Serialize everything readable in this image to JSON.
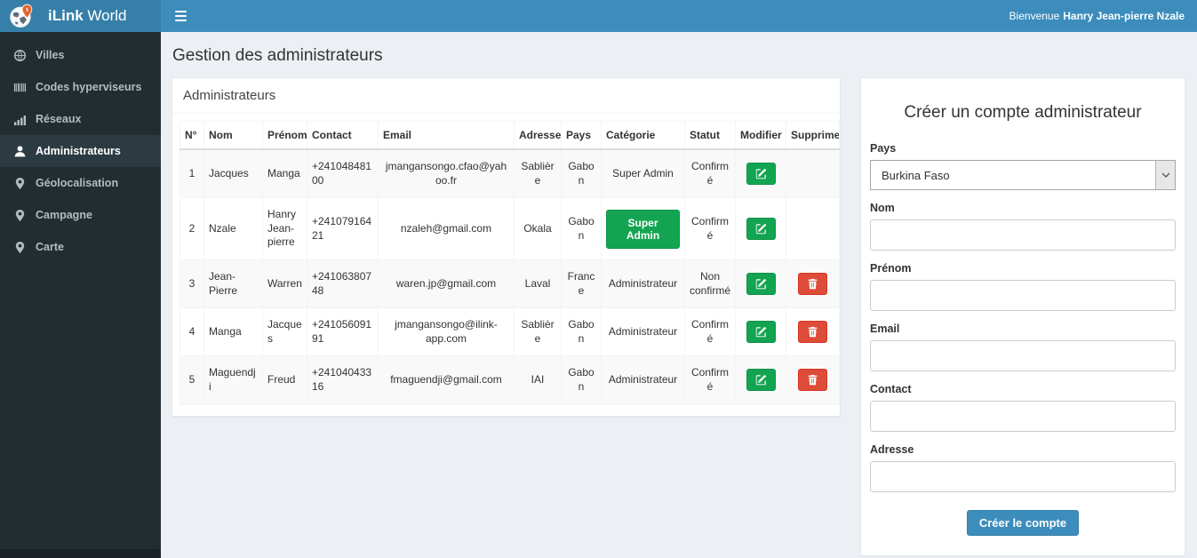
{
  "brand": {
    "bold": "iLink",
    "light": "World"
  },
  "topbar": {
    "welcome_prefix": "Bienvenue",
    "user_name": "Hanry Jean-pierre Nzale",
    "menu_icon": "hamburger-icon"
  },
  "sidebar": {
    "items": [
      {
        "label": "Villes",
        "icon": "globe-icon",
        "active": false
      },
      {
        "label": "Codes hyperviseurs",
        "icon": "barcode-icon",
        "active": false
      },
      {
        "label": "Réseaux",
        "icon": "signal-bars-icon",
        "active": false
      },
      {
        "label": "Administrateurs",
        "icon": "user-icon",
        "active": true
      },
      {
        "label": "Géolocalisation",
        "icon": "map-marker-icon",
        "active": false
      },
      {
        "label": "Campagne",
        "icon": "map-marker-icon",
        "active": false
      },
      {
        "label": "Carte",
        "icon": "map-marker-icon",
        "active": false
      }
    ]
  },
  "page": {
    "title": "Gestion des administrateurs"
  },
  "table_panel": {
    "title": "Administrateurs",
    "columns": [
      "N°",
      "Nom",
      "Prénom",
      "Contact",
      "Email",
      "Adresse",
      "Pays",
      "Catégorie",
      "Statut",
      "Modifier",
      "Supprimer"
    ],
    "rows": [
      {
        "num": "1",
        "nom": "Jacques",
        "prenom": "Manga",
        "contact": "+24104848100",
        "email": "jmangansongo.cfao@yahoo.fr",
        "adresse": "Sablière",
        "pays": "Gabon",
        "categorie": "Super Admin",
        "categorie_style": "text",
        "statut": "Confirmé",
        "can_delete": false
      },
      {
        "num": "2",
        "nom": "Nzale",
        "prenom": "Hanry Jean-pierre",
        "contact": "+24107916421",
        "email": "nzaleh@gmail.com",
        "adresse": "Okala",
        "pays": "Gabon",
        "categorie": "Super Admin",
        "categorie_style": "button",
        "statut": "Confirmé",
        "can_delete": false
      },
      {
        "num": "3",
        "nom": "Jean-Pierre",
        "prenom": "Warren",
        "contact": "+24106380748",
        "email": "waren.jp@gmail.com",
        "adresse": "Laval",
        "pays": "France",
        "categorie": "Administrateur",
        "categorie_style": "text",
        "statut": "Non confirmé",
        "can_delete": true
      },
      {
        "num": "4",
        "nom": "Manga",
        "prenom": "Jacques",
        "contact": "+24105609191",
        "email": "jmangansongo@ilink-app.com",
        "adresse": "Sablière",
        "pays": "Gabon",
        "categorie": "Administrateur",
        "categorie_style": "text",
        "statut": "Confirmé",
        "can_delete": true
      },
      {
        "num": "5",
        "nom": "Maguendji",
        "prenom": "Freud",
        "contact": "+24104043316",
        "email": "fmaguendji@gmail.com",
        "adresse": "IAI",
        "pays": "Gabon",
        "categorie": "Administrateur",
        "categorie_style": "text",
        "statut": "Confirmé",
        "can_delete": true
      }
    ],
    "edit_icon": "edit-icon",
    "delete_icon": "trash-icon"
  },
  "form": {
    "title": "Créer un compte administrateur",
    "fields": [
      {
        "id": "pays",
        "label": "Pays",
        "type": "select",
        "value": "Burkina Faso"
      },
      {
        "id": "nom",
        "label": "Nom",
        "type": "text",
        "value": ""
      },
      {
        "id": "prenom",
        "label": "Prénom",
        "type": "text",
        "value": ""
      },
      {
        "id": "email",
        "label": "Email",
        "type": "text",
        "value": ""
      },
      {
        "id": "contact",
        "label": "Contact",
        "type": "text",
        "value": ""
      },
      {
        "id": "adresse",
        "label": "Adresse",
        "type": "text",
        "value": ""
      }
    ],
    "submit_label": "Créer le compte"
  },
  "colors": {
    "navbar": "#3c8dbc",
    "logo_bg": "#367fa9",
    "sidebar_bg": "#222d32",
    "sidebar_active_bg": "#2c3b41",
    "content_bg": "#ecf0f5",
    "success": "#13a452",
    "danger": "#dd4b39",
    "pin_orange": "#e8632b"
  }
}
